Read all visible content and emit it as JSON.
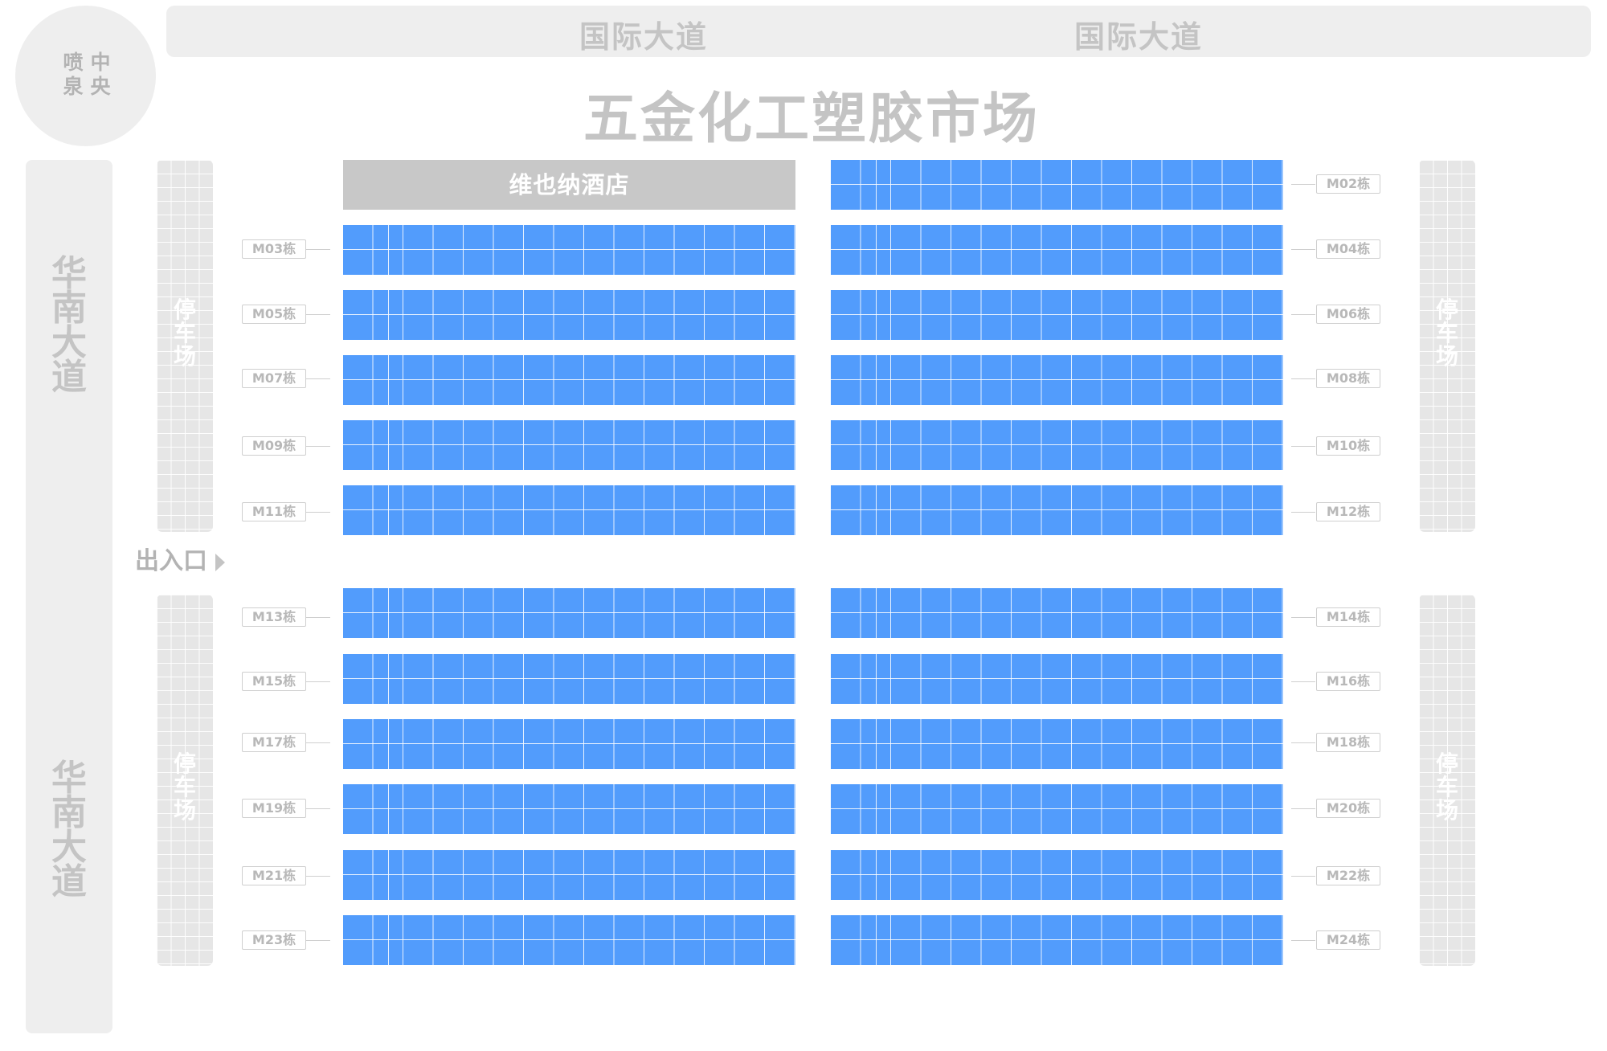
{
  "top_road": {
    "labels": [
      "国际大道",
      "国际大道"
    ]
  },
  "fountain": {
    "col_left": "喷\n泉",
    "col_right": "中\n央"
  },
  "title": "五金化工塑胶市场",
  "left_road": {
    "label_top": "华\n南\n大\n道",
    "label_bottom": "华\n南\n大\n道"
  },
  "parking": {
    "label": "停\n车\n场"
  },
  "entrance": {
    "label": "出入口"
  },
  "hotel": {
    "label": "维也纳酒店"
  },
  "buildings": {
    "left": [
      "M03栋",
      "M05栋",
      "M07栋",
      "M09栋",
      "M11栋",
      "M13栋",
      "M15栋",
      "M17栋",
      "M19栋",
      "M21栋",
      "M23栋"
    ],
    "right": [
      "M02栋",
      "M04栋",
      "M06栋",
      "M08栋",
      "M10栋",
      "M12栋",
      "M14栋",
      "M16栋",
      "M18栋",
      "M20栋",
      "M22栋",
      "M24栋"
    ]
  },
  "colors": {
    "block": "#529cfc",
    "road": "#eeeeee",
    "parking": "#e6e6e6",
    "hotel": "#c8c8c8",
    "label": "#c4c4c4"
  }
}
